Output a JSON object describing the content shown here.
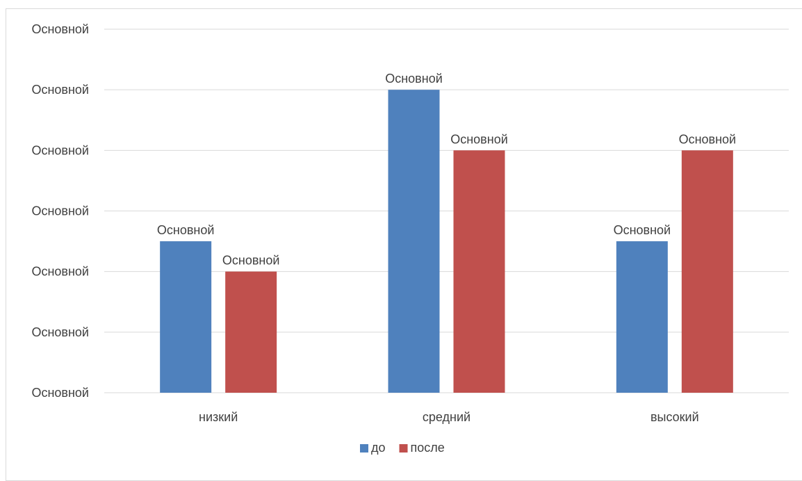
{
  "chart_data": {
    "type": "bar",
    "categories": [
      "низкий",
      "средний",
      "высокий"
    ],
    "series": [
      {
        "name": "до",
        "color": "#4f81bd",
        "values": [
          2.5,
          5,
          2.5
        ],
        "labels": [
          "Основной",
          "Основной",
          "Основной"
        ]
      },
      {
        "name": "после",
        "color": "#c0504d",
        "values": [
          2,
          4,
          4
        ],
        "labels": [
          "Основной",
          "Основной",
          "Основной"
        ]
      }
    ],
    "ylim": [
      0,
      6
    ],
    "y_tick_labels": [
      "Основной",
      "Основной",
      "Основной",
      "Основной",
      "Основной",
      "Основной",
      "Основной"
    ],
    "grid": true,
    "legend_position": "bottom",
    "colors": {
      "gridline": "#d9d9d9",
      "text": "#404040"
    }
  }
}
